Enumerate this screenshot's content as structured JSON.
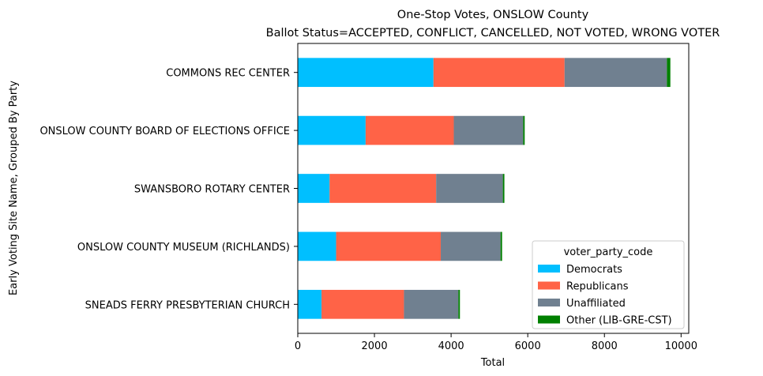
{
  "chart_data": {
    "type": "bar",
    "orientation": "horizontal",
    "stacked": true,
    "title": "One-Stop Votes, ONSLOW County",
    "subtitle": "Ballot Status=ACCEPTED, CONFLICT, CANCELLED, NOT VOTED, WRONG VOTER",
    "xlabel": "Total",
    "ylabel": "Early Voting Site Name, Grouped By Party",
    "xlim": [
      0,
      10200
    ],
    "xticks": [
      0,
      2000,
      4000,
      6000,
      8000,
      10000
    ],
    "xtick_labels": [
      "0",
      "2000",
      "4000",
      "6000",
      "8000",
      "10000"
    ],
    "categories": [
      "SNEADS FERRY PRESBYTERIAN CHURCH",
      "ONSLOW COUNTY MUSEUM (RICHLANDS)",
      "SWANSBORO ROTARY CENTER",
      "ONSLOW COUNTY BOARD OF ELECTIONS OFFICE",
      "COMMONS REC CENTER"
    ],
    "series": [
      {
        "name": "Democrats",
        "color": "#00bfff",
        "values": [
          620,
          1000,
          830,
          1770,
          3540
        ]
      },
      {
        "name": "Republicans",
        "color": "#ff6347",
        "values": [
          2150,
          2730,
          2780,
          2300,
          3420
        ]
      },
      {
        "name": "Unaffiliated",
        "color": "#708090",
        "values": [
          1420,
          1560,
          1740,
          1810,
          2670
        ]
      },
      {
        "name": "Other (LIB-GRE-CST)",
        "color": "#008000",
        "values": [
          40,
          40,
          40,
          40,
          90
        ]
      }
    ],
    "legend_title": "voter_party_code",
    "legend_position": "lower-right",
    "grid": false
  }
}
